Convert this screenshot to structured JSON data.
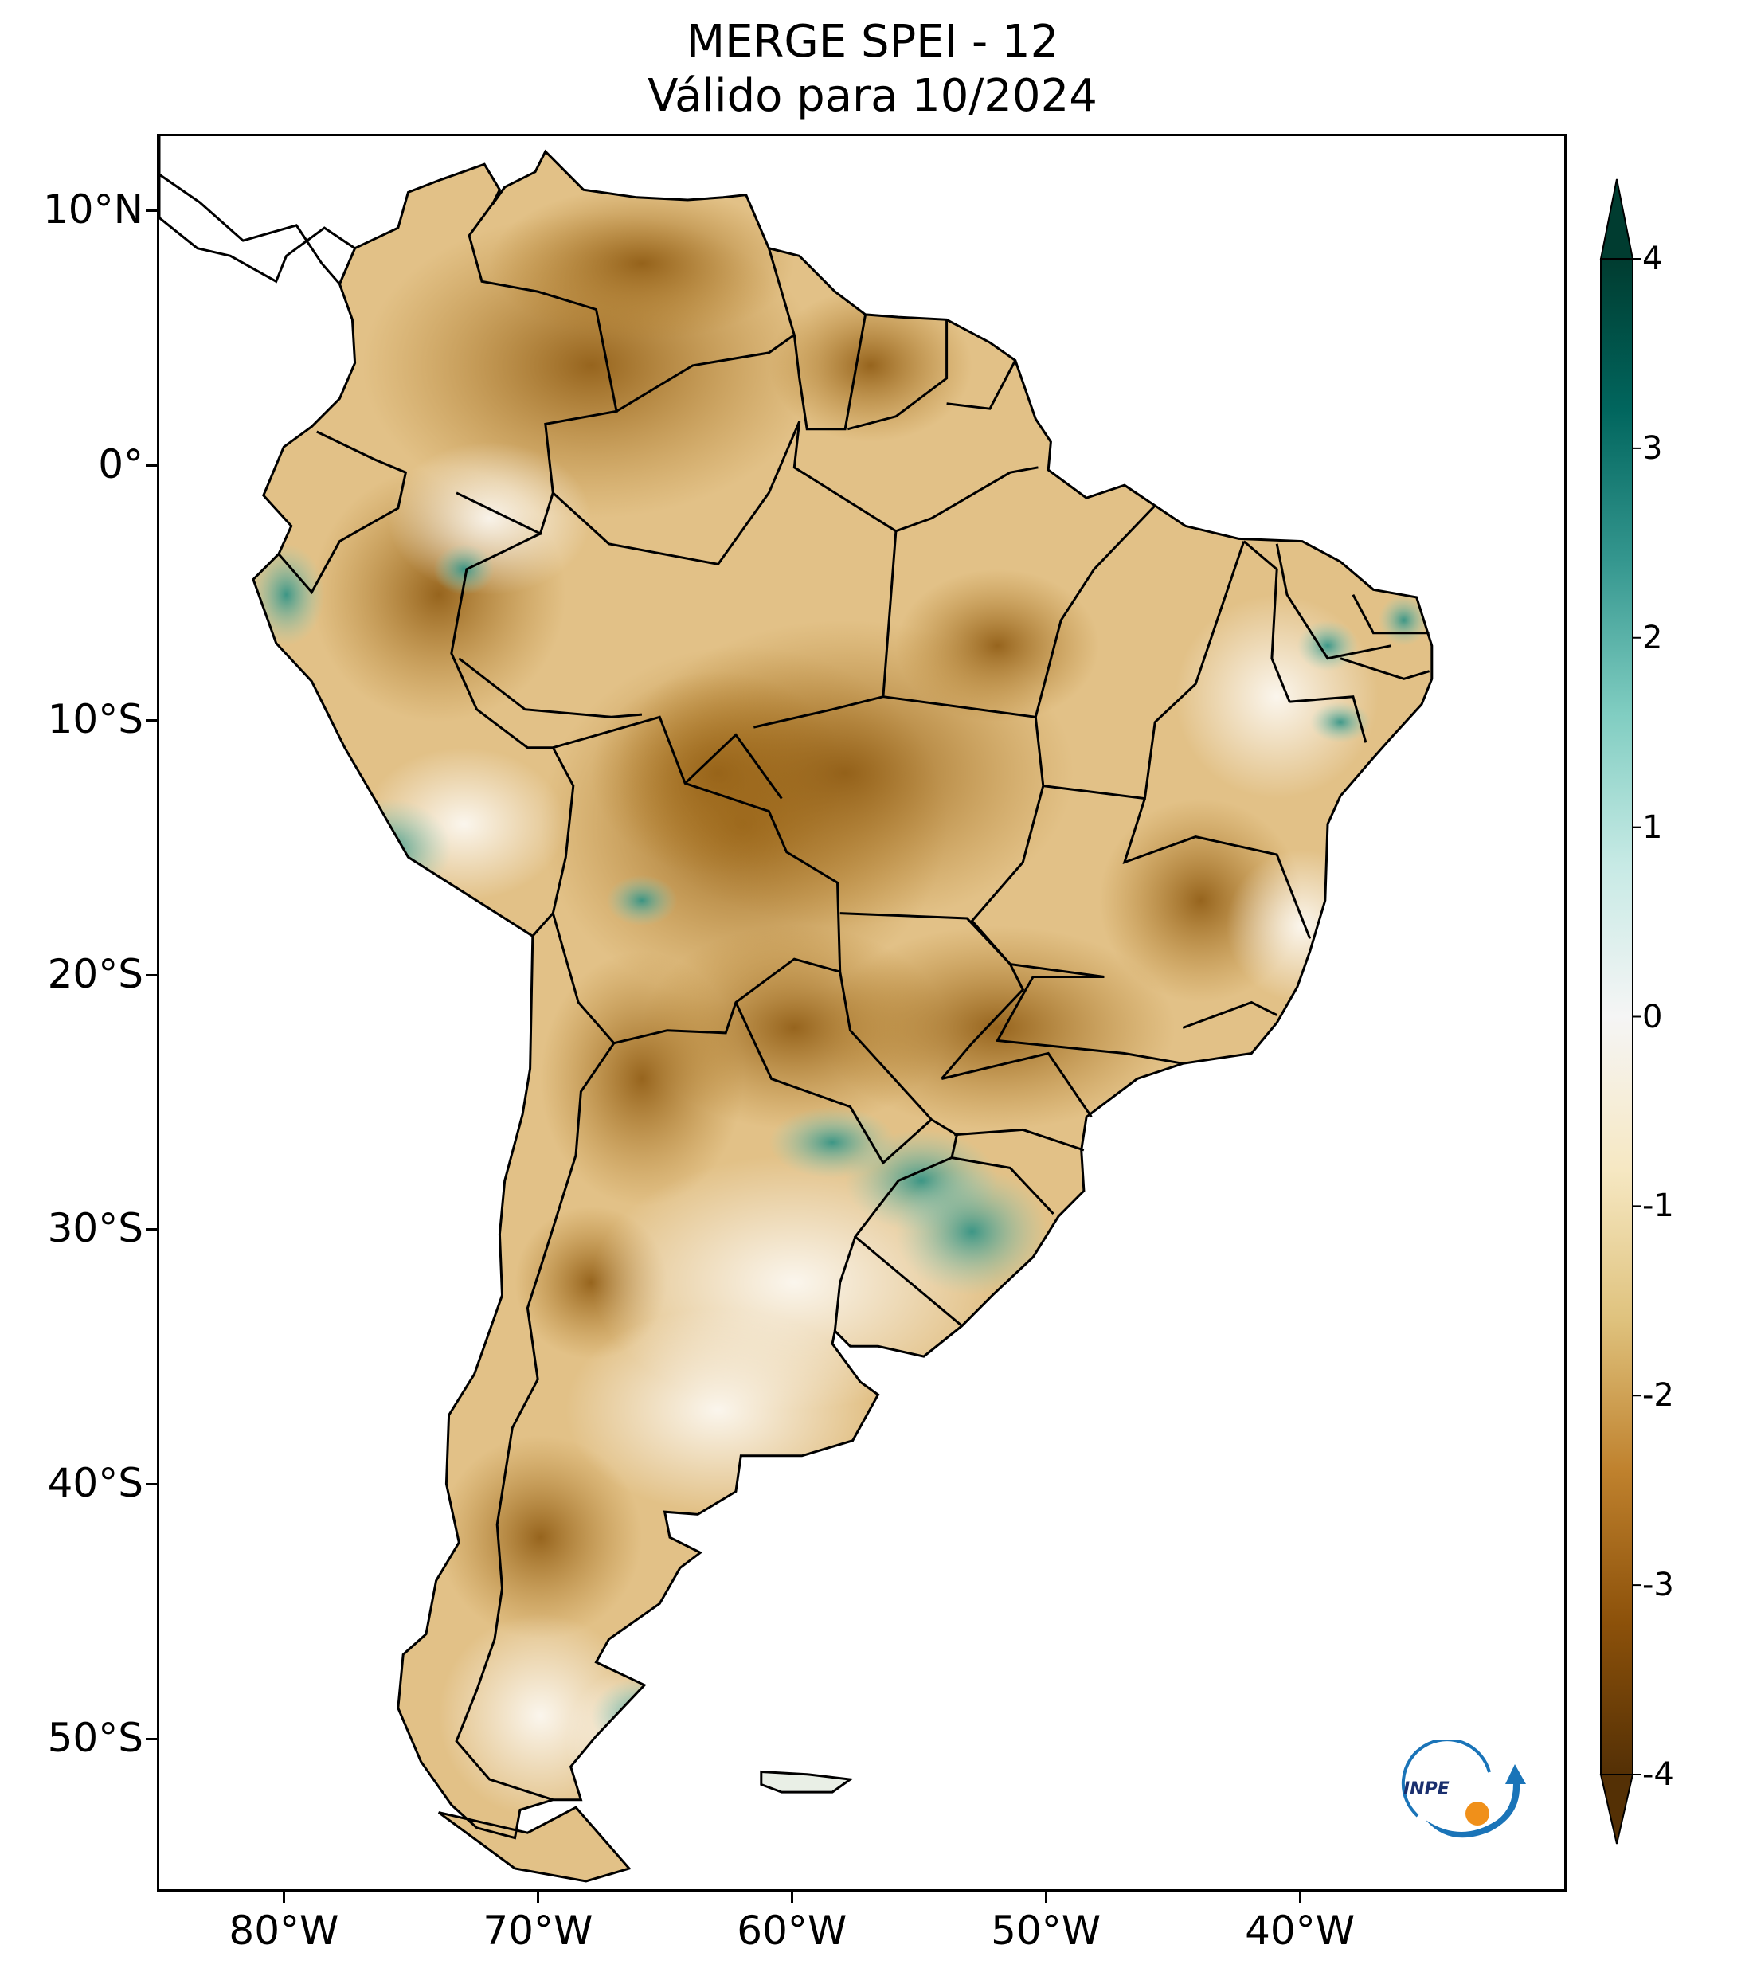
{
  "header": {
    "title_line1": "MERGE   SPEI - 12",
    "title_line2": "Válido para 10/2024"
  },
  "map": {
    "lat_ticks": [
      "10°N",
      "0°",
      "10°S",
      "20°S",
      "30°S",
      "40°S",
      "50°S"
    ],
    "lon_ticks": [
      "80°W",
      "70°W",
      "60°W",
      "50°W",
      "40°W"
    ],
    "extent": {
      "lon_min": -85,
      "lon_max": -29.5,
      "lat_min": -56,
      "lat_max": 13
    },
    "land_color": "#e2c187",
    "dry_color": "#b07a24",
    "very_dry_color": "#8e5a12",
    "wet_color": "#5fb7ad",
    "border_color": "#000000"
  },
  "colorbar": {
    "labels": [
      "4",
      "3",
      "2",
      "1",
      "0",
      "-1",
      "-2",
      "-3",
      "-4"
    ],
    "range": [
      -4,
      4
    ],
    "extend": "both",
    "colors": [
      "#543005",
      "#8c510a",
      "#bf812d",
      "#dfc27d",
      "#f6e8c3",
      "#f5f5f5",
      "#c7eae5",
      "#80cdc1",
      "#35978f",
      "#01665e",
      "#003c30"
    ]
  },
  "logo": {
    "text": "INPE",
    "icon": "inpe-logo-icon"
  }
}
